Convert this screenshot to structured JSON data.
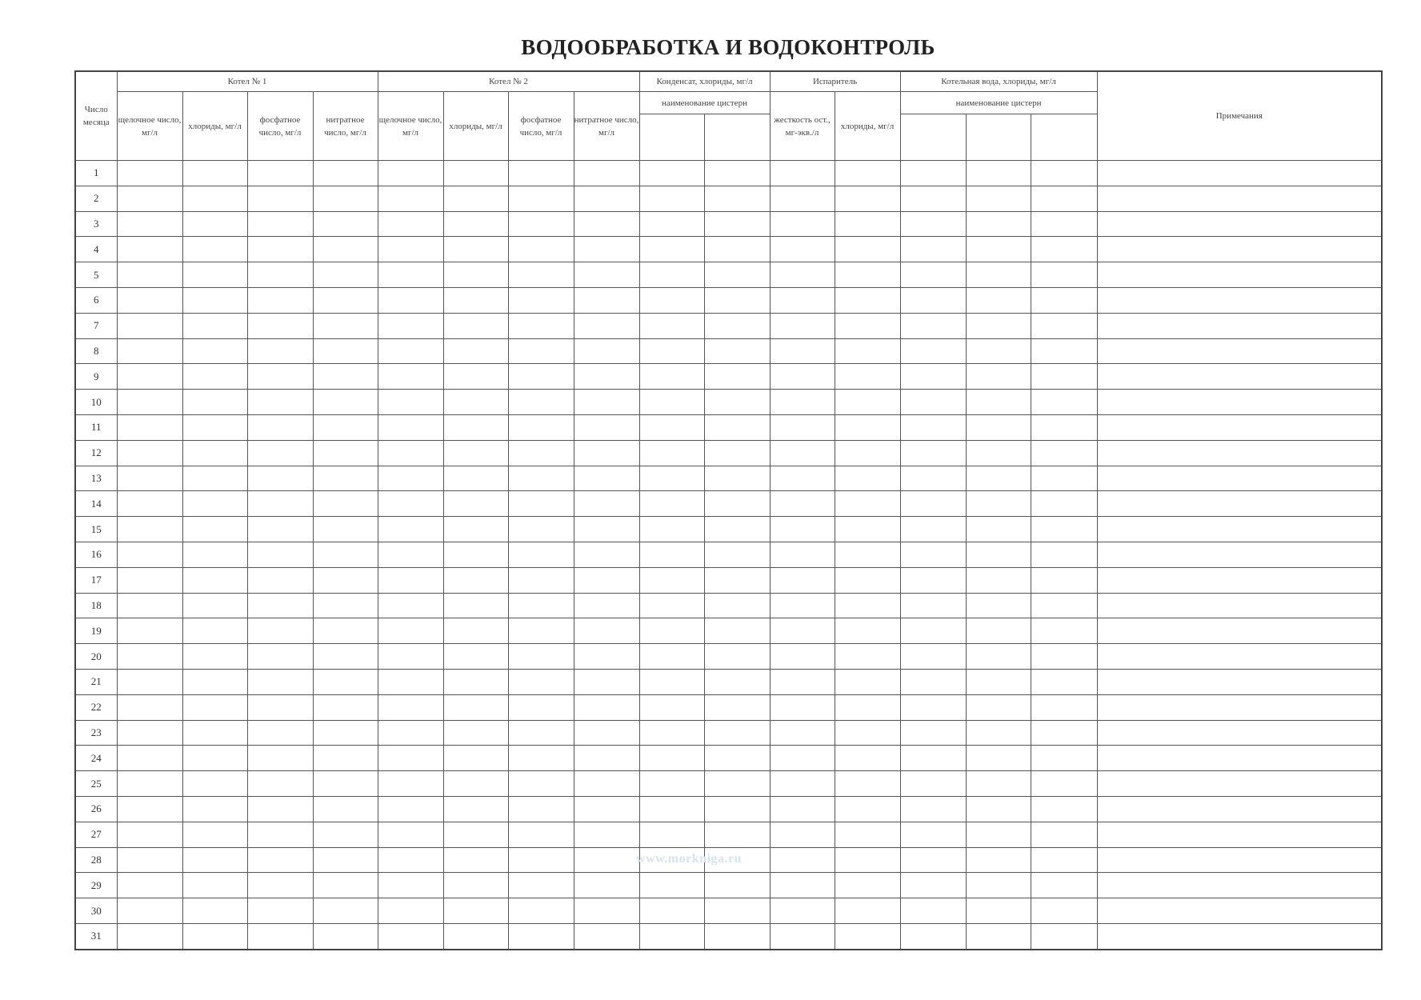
{
  "title": "ВОДООБРАБОТКА И ВОДОКОНТРОЛЬ",
  "headers": {
    "day": "Число месяца",
    "boiler1": "Котел № 1",
    "boiler2": "Котел № 2",
    "condensate": "Конденсат, хлориды, мг/л",
    "evaporator": "Испаритель",
    "boiler_water": "Котельная вода, хлориды, мг/л",
    "tank_name": "наименование цистерн",
    "notes": "Примечания",
    "alkaline": "щелочное число, мг/л",
    "chlorides": "хлориды, мг/л",
    "phosphate": "фосфатное число, мг/л",
    "nitrate": "нитратное число, мг/л",
    "hardness": "жесткость ост., мг-экв./л"
  },
  "days": [
    "1",
    "2",
    "3",
    "4",
    "5",
    "6",
    "7",
    "8",
    "9",
    "10",
    "11",
    "12",
    "13",
    "14",
    "15",
    "16",
    "17",
    "18",
    "19",
    "20",
    "21",
    "22",
    "23",
    "24",
    "25",
    "26",
    "27",
    "28",
    "29",
    "30",
    "31"
  ],
  "watermark": "www.morkniga.ru"
}
